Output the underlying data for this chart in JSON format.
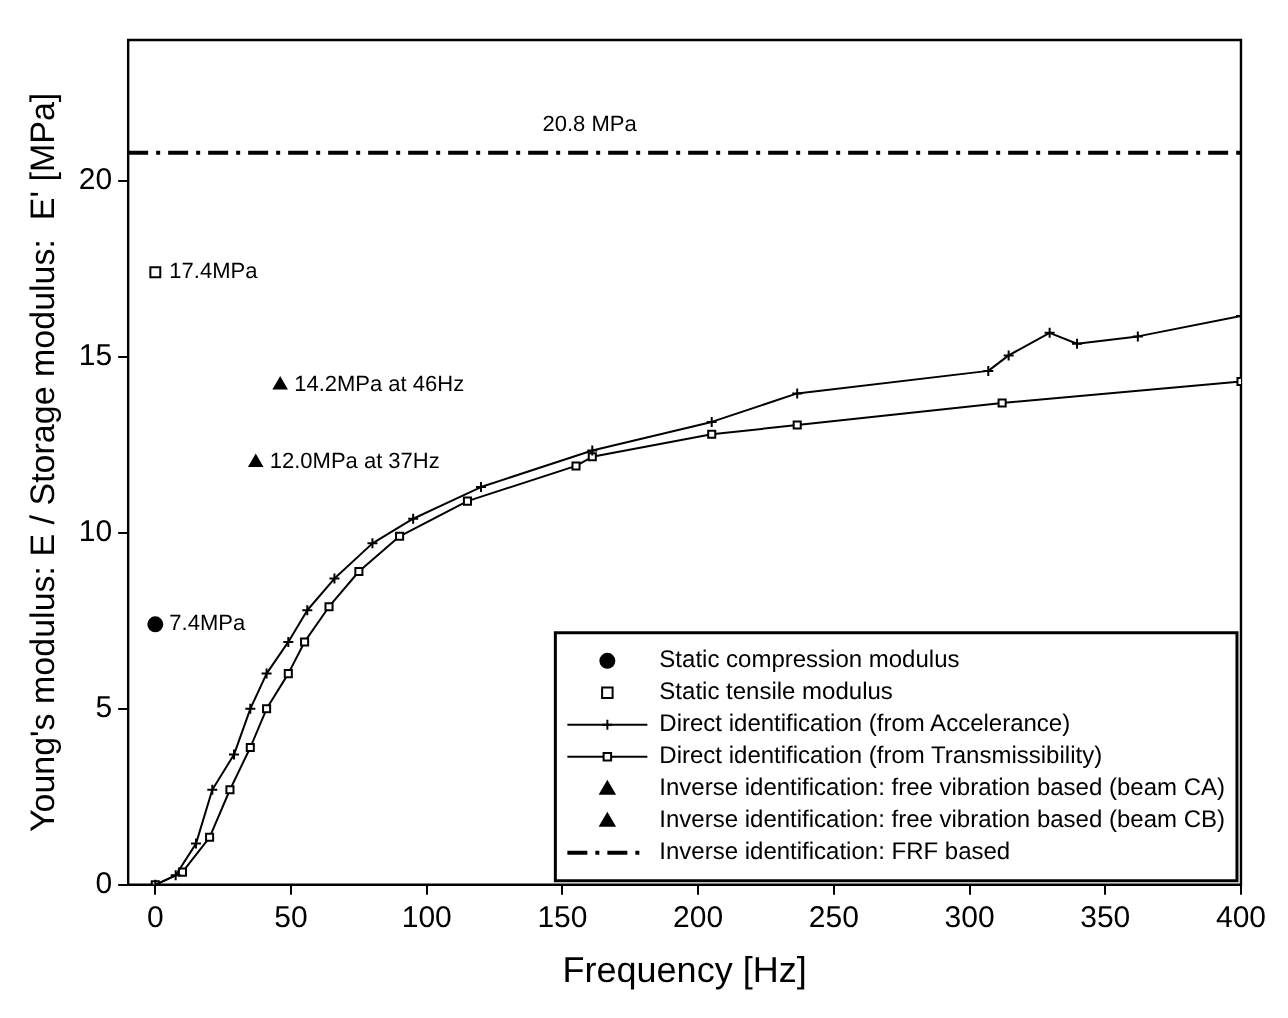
{
  "chart_data": {
    "type": "line",
    "xlabel": "Frequency [Hz]",
    "ylabel": "Young's modulus: E / Storage modulus:  E' [MPa]",
    "xlim": [
      -10,
      400
    ],
    "xticks": [
      0,
      50,
      100,
      150,
      200,
      250,
      300,
      350,
      400
    ],
    "ylim": [
      0,
      24
    ],
    "yticks": [
      0,
      5,
      10,
      15,
      20
    ],
    "grid": false,
    "legend": "bottom right",
    "series": [
      {
        "name": "Static compression modulus",
        "type": "scatter",
        "marker": "circle",
        "color": "#000000",
        "x": [
          0
        ],
        "values": [
          7.4
        ]
      },
      {
        "name": "Static tensile modulus",
        "type": "scatter",
        "marker": "square",
        "color": "#000000",
        "x": [
          0
        ],
        "values": [
          17.4
        ]
      },
      {
        "name": "Direct identification (from Accelerance)",
        "marker": "cross",
        "line_style": "solid",
        "color": "#000000",
        "x": [
          0,
          7.5,
          15,
          21,
          29,
          35,
          41,
          49,
          56,
          66,
          80,
          95,
          120,
          161,
          205,
          236.5,
          306.9,
          314.4,
          329.5,
          339.6,
          362,
          400
        ],
        "values": [
          0,
          0.27,
          1.17,
          2.7,
          3.7,
          5.0,
          6.0,
          6.9,
          7.8,
          8.7,
          9.7,
          10.4,
          11.3,
          12.34,
          13.15,
          13.96,
          14.6,
          15.04,
          15.68,
          15.37,
          15.58,
          16.16
        ]
      },
      {
        "name": "Direct identification (from Transmissibility)",
        "marker": "square",
        "line_style": "solid",
        "color": "#000000",
        "x": [
          0,
          10,
          20,
          27.5,
          35,
          41,
          49,
          55,
          64,
          75,
          90,
          115,
          155,
          161,
          205,
          236.5,
          312,
          400
        ],
        "values": [
          0,
          0.36,
          1.35,
          2.7,
          3.9,
          5.0,
          6.0,
          6.9,
          7.9,
          8.9,
          9.9,
          10.9,
          11.9,
          12.16,
          12.8,
          13.06,
          13.69,
          14.3
        ]
      },
      {
        "name": "Inverse identification: free vibration based (beam CA)",
        "type": "scatter",
        "marker": "triangle",
        "color": "#000000",
        "x": [
          37
        ],
        "values": [
          12.0
        ]
      },
      {
        "name": "Inverse identification: free vibration based (beam CB)",
        "type": "scatter",
        "marker": "triangle",
        "color": "#000000",
        "x": [
          46
        ],
        "values": [
          14.2
        ]
      },
      {
        "name": "Inverse identification: FRF based",
        "marker": "none",
        "line_style": "dashed",
        "color": "#000000",
        "x": [
          -10,
          400
        ],
        "values": [
          20.8,
          20.8
        ]
      }
    ],
    "annotations": [
      {
        "text": "7.4MPa",
        "x": 0,
        "y": 7.4
      },
      {
        "text": "17.4MPa",
        "x": 0,
        "y": 17.4
      },
      {
        "text": "12.0MPa at 37Hz",
        "x": 37,
        "y": 12.0
      },
      {
        "text": "14.2MPa at 46Hz",
        "x": 46,
        "y": 14.2
      },
      {
        "text": "20.8 MPa",
        "x": 160,
        "y": 20.8
      }
    ]
  }
}
